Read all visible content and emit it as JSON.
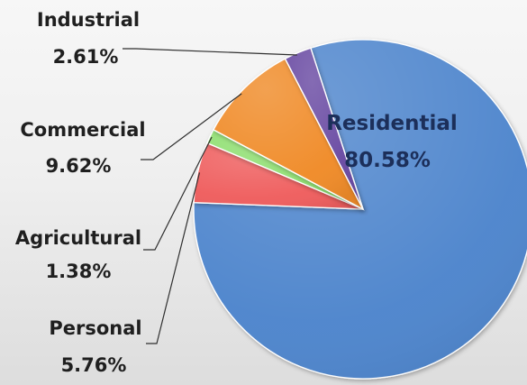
{
  "chart_data": {
    "type": "pie",
    "slices": [
      {
        "label": "Residential",
        "value_text": "80.58%",
        "value": 80.58,
        "color": "#4f86cd"
      },
      {
        "label": "Personal",
        "value_text": "5.76%",
        "value": 5.76,
        "color": "#ef5f5f"
      },
      {
        "label": "Agricultural",
        "value_text": "1.38%",
        "value": 1.38,
        "color": "#8fdf71"
      },
      {
        "label": "Commercial",
        "value_text": "9.62%",
        "value": 9.62,
        "color": "#f08c2b"
      },
      {
        "label": "Industrial",
        "value_text": "2.61%",
        "value": 2.61,
        "color": "#6b4ba3"
      }
    ]
  }
}
